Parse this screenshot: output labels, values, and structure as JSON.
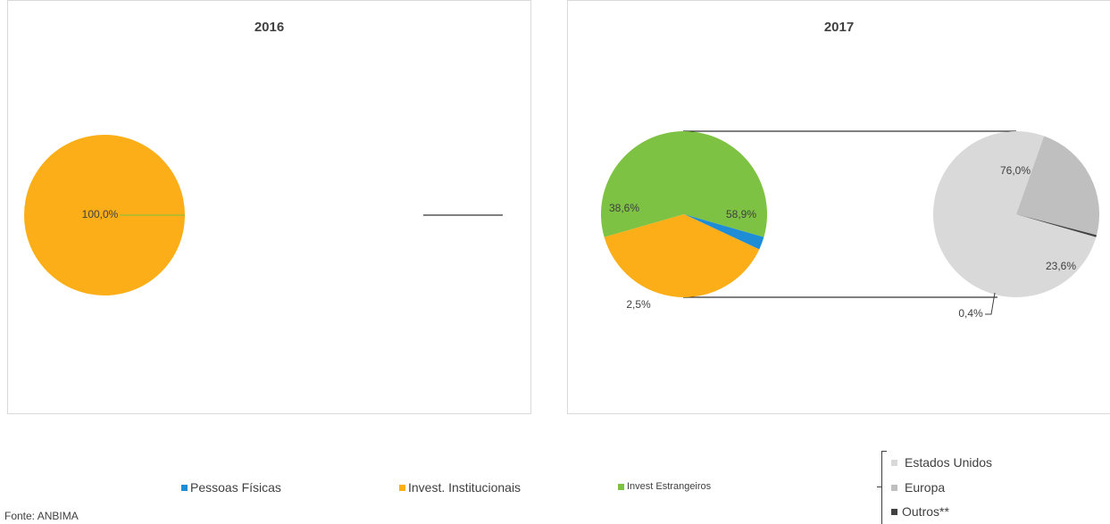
{
  "chart_data": [
    {
      "type": "pie",
      "title": "2016",
      "slices": [
        {
          "label": "Pessoas Físicas",
          "value": 0.0,
          "color": "#1f8dd6"
        },
        {
          "label": "Invest. Institucionais",
          "value": 100.0,
          "value_label": "100,0%",
          "color": "#fbae17"
        },
        {
          "label": "Invest Estrangeiros",
          "value": 0.0,
          "color": "#7dc242"
        }
      ]
    },
    {
      "type": "pie",
      "title": "2017",
      "slices": [
        {
          "label": "Pessoas Físicas",
          "value": 2.5,
          "value_label": "2,5%",
          "color": "#1f8dd6"
        },
        {
          "label": "Invest. Institucionais",
          "value": 38.6,
          "value_label": "38,6%",
          "color": "#fbae17"
        },
        {
          "label": "Invest Estrangeiros",
          "value": 58.9,
          "value_label": "58,9%",
          "color": "#7dc242"
        }
      ],
      "breakdown": {
        "of": "Invest Estrangeiros",
        "slices": [
          {
            "label": "Estados Unidos",
            "value": 76.0,
            "value_label": "76,0%",
            "color": "#d9d9d9"
          },
          {
            "label": "Europa",
            "value": 23.6,
            "value_label": "23,6%",
            "color": "#bfbfbf"
          },
          {
            "label": "Outros**",
            "value": 0.4,
            "value_label": "0,4%",
            "color": "#404040"
          }
        ]
      }
    }
  ],
  "legend": {
    "main": [
      {
        "label": "Pessoas Físicas",
        "color": "#1f8dd6"
      },
      {
        "label": "Invest. Institucionais",
        "color": "#fbae17"
      },
      {
        "label": "Invest Estrangeiros",
        "color": "#7dc242"
      }
    ],
    "breakdown": [
      {
        "label": "Estados Unidos",
        "color": "#d9d9d9"
      },
      {
        "label": "Europa",
        "color": "#bfbfbf"
      },
      {
        "label": "Outros**",
        "color": "#404040"
      }
    ]
  },
  "source": "Fonte: ANBIMA"
}
